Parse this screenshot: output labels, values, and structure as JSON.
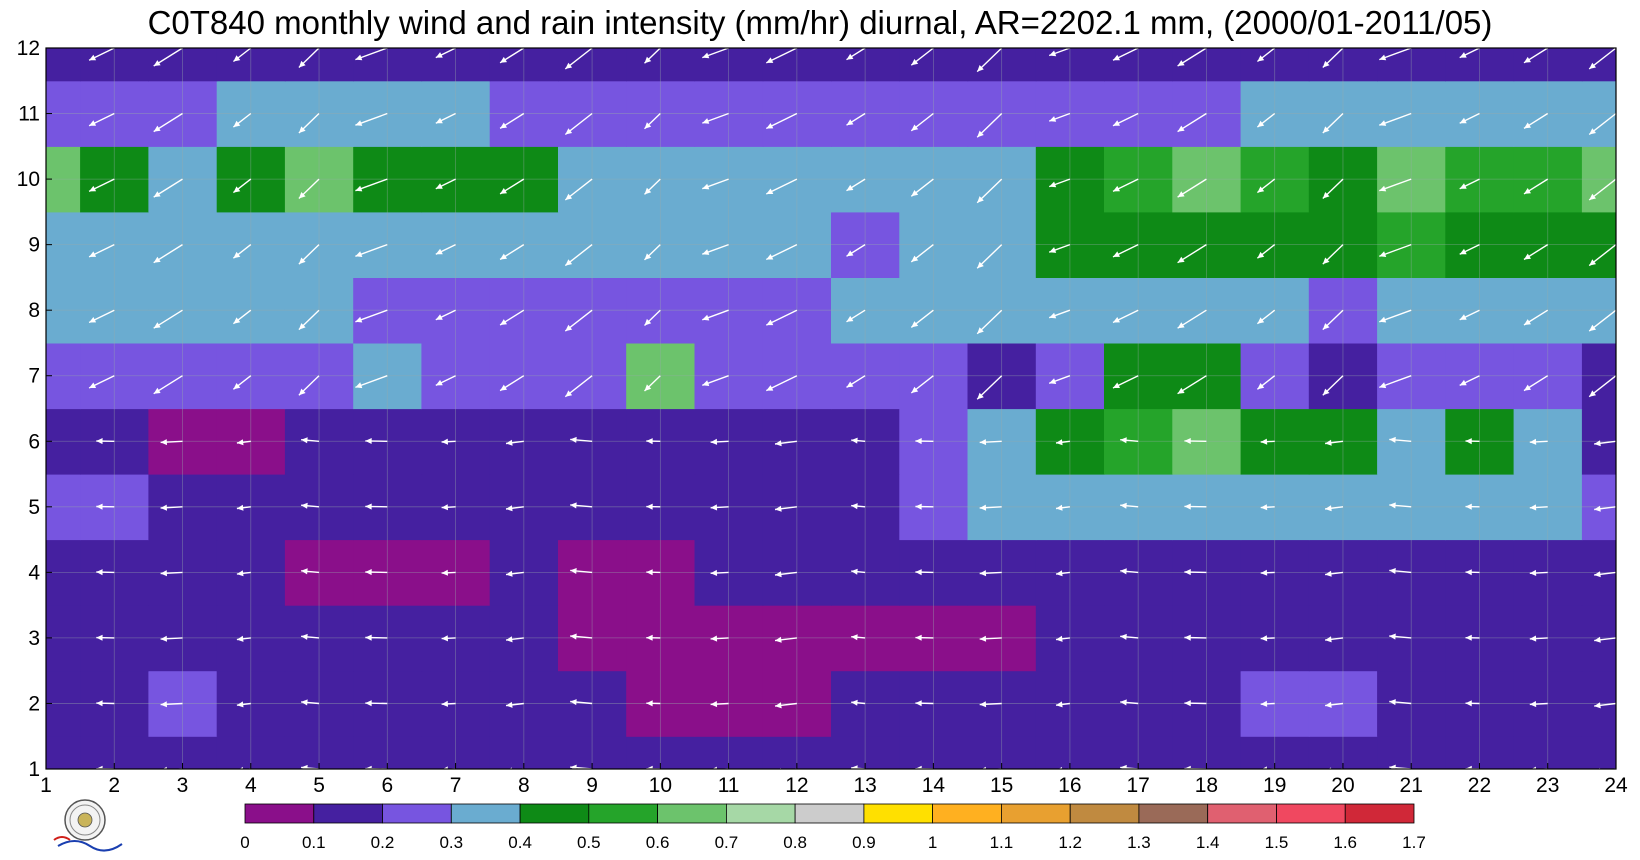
{
  "chart_data": {
    "type": "heatmap",
    "title": "C0T840 monthly wind and rain intensity (mm/hr) diurnal, AR=2202.1 mm, (2000/01-2011/05)",
    "x_ticks": [
      1,
      2,
      3,
      4,
      5,
      6,
      7,
      8,
      9,
      10,
      11,
      12,
      13,
      14,
      15,
      16,
      17,
      18,
      19,
      20,
      21,
      22,
      23,
      24
    ],
    "y_ticks": [
      1,
      2,
      3,
      4,
      5,
      6,
      7,
      8,
      9,
      10,
      11,
      12
    ],
    "xlim": [
      1,
      24
    ],
    "ylim": [
      1,
      12
    ],
    "grid": true,
    "colorbar": {
      "placement": "bottom",
      "labels": [
        "0",
        "0.1",
        "0.2",
        "0.3",
        "0.4",
        "0.5",
        "0.6",
        "0.7",
        "0.8",
        "0.9",
        "1",
        "1.1",
        "1.2",
        "1.3",
        "1.4",
        "1.5",
        "1.6",
        "1.7"
      ],
      "colors": [
        "#8a0f8a",
        "#4520a0",
        "#7755e0",
        "#6aacd0",
        "#0e8a16",
        "#25a42a",
        "#6cc36c",
        "#a6d8a6",
        "#cccccc",
        "#ffe000",
        "#ffb020",
        "#e8a030",
        "#c08a40",
        "#9a6a58",
        "#e06070",
        "#f04860",
        "#d02838"
      ]
    },
    "rain_intensity": [
      [
        0.1,
        0.1,
        0.1,
        0.1,
        0.1,
        0.1,
        0.1,
        0.15,
        0.1,
        0.1,
        0.1,
        0.1,
        0.1,
        0.1,
        0.1,
        0.1,
        0.1,
        0.1,
        0.1,
        0.1,
        0.1,
        0.1,
        0.1,
        0.1
      ],
      [
        0.15,
        0.15,
        0.25,
        0.15,
        0.15,
        0.15,
        0.15,
        0.15,
        0.15,
        0.05,
        0.05,
        0.05,
        0.15,
        0.15,
        0.15,
        0.15,
        0.15,
        0.15,
        0.25,
        0.25,
        0.15,
        0.15,
        0.15,
        0.15
      ],
      [
        0.15,
        0.15,
        0.15,
        0.15,
        0.15,
        0.15,
        0.15,
        0.15,
        0.05,
        0.05,
        0.05,
        0.05,
        0.05,
        0.05,
        0.05,
        0.15,
        0.15,
        0.15,
        0.15,
        0.15,
        0.15,
        0.15,
        0.15,
        0.15
      ],
      [
        0.15,
        0.15,
        0.15,
        0.15,
        0.05,
        0.05,
        0.05,
        0.15,
        0.05,
        0.05,
        0.15,
        0.15,
        0.15,
        0.15,
        0.15,
        0.15,
        0.15,
        0.15,
        0.15,
        0.15,
        0.15,
        0.15,
        0.15,
        0.15
      ],
      [
        0.25,
        0.25,
        0.15,
        0.15,
        0.15,
        0.15,
        0.15,
        0.15,
        0.15,
        0.15,
        0.15,
        0.15,
        0.15,
        0.25,
        0.35,
        0.35,
        0.35,
        0.35,
        0.35,
        0.35,
        0.35,
        0.35,
        0.35,
        0.25
      ],
      [
        0.15,
        0.15,
        0.05,
        0.05,
        0.15,
        0.15,
        0.15,
        0.15,
        0.15,
        0.15,
        0.15,
        0.15,
        0.15,
        0.25,
        0.35,
        0.45,
        0.55,
        0.65,
        0.45,
        0.45,
        0.35,
        0.45,
        0.35,
        0.15
      ],
      [
        0.25,
        0.25,
        0.25,
        0.25,
        0.25,
        0.35,
        0.25,
        0.25,
        0.25,
        0.65,
        0.25,
        0.25,
        0.25,
        0.25,
        0.15,
        0.25,
        0.45,
        0.45,
        0.25,
        0.15,
        0.25,
        0.25,
        0.25,
        0.15
      ],
      [
        0.35,
        0.35,
        0.35,
        0.35,
        0.35,
        0.25,
        0.25,
        0.25,
        0.25,
        0.25,
        0.25,
        0.25,
        0.35,
        0.35,
        0.35,
        0.35,
        0.35,
        0.35,
        0.35,
        0.25,
        0.35,
        0.35,
        0.35,
        0.35
      ],
      [
        0.35,
        0.35,
        0.35,
        0.35,
        0.35,
        0.35,
        0.35,
        0.35,
        0.35,
        0.35,
        0.35,
        0.35,
        0.25,
        0.35,
        0.35,
        0.45,
        0.45,
        0.45,
        0.45,
        0.45,
        0.55,
        0.45,
        0.45,
        0.45
      ],
      [
        0.65,
        0.45,
        0.35,
        0.45,
        0.65,
        0.45,
        0.45,
        0.45,
        0.35,
        0.35,
        0.35,
        0.35,
        0.35,
        0.35,
        0.35,
        0.45,
        0.55,
        0.65,
        0.55,
        0.45,
        0.65,
        0.55,
        0.55,
        0.65
      ],
      [
        0.25,
        0.25,
        0.25,
        0.35,
        0.35,
        0.35,
        0.35,
        0.25,
        0.25,
        0.25,
        0.25,
        0.25,
        0.25,
        0.25,
        0.25,
        0.25,
        0.25,
        0.25,
        0.35,
        0.35,
        0.35,
        0.35,
        0.35,
        0.35
      ],
      [
        0.15,
        0.15,
        0.1,
        0.1,
        0.1,
        0.15,
        0.15,
        0.15,
        0.15,
        0.15,
        0.15,
        0.15,
        0.15,
        0.15,
        0.15,
        0.15,
        0.15,
        0.15,
        0.15,
        0.15,
        0.15,
        0.15,
        0.15,
        0.15
      ]
    ]
  }
}
